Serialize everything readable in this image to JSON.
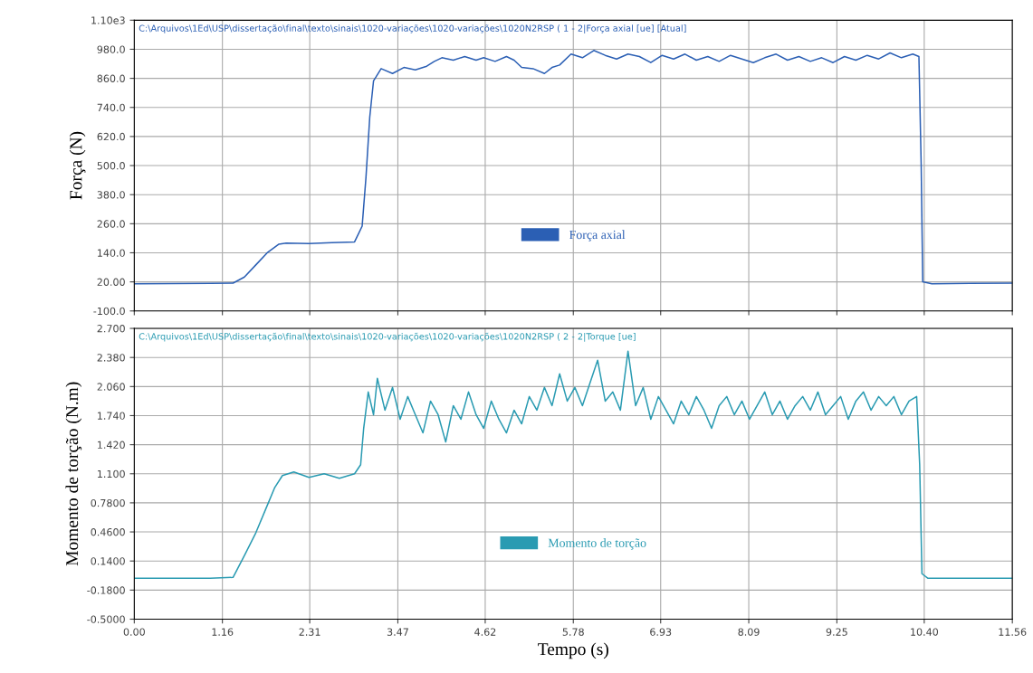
{
  "chart_data": [
    {
      "type": "line",
      "ylabel": "Força (N)",
      "xlim": [
        0,
        11.56
      ],
      "ylim": [
        -100,
        1100
      ],
      "xticks": [
        {
          "value": 0,
          "label": null
        },
        {
          "value": 1.16,
          "label": null
        },
        {
          "value": 2.31,
          "label": null
        },
        {
          "value": 3.47,
          "label": null
        },
        {
          "value": 4.62,
          "label": null
        },
        {
          "value": 5.78,
          "label": null
        },
        {
          "value": 6.93,
          "label": null
        },
        {
          "value": 8.09,
          "label": null
        },
        {
          "value": 9.25,
          "label": null
        },
        {
          "value": 10.4,
          "label": null
        },
        {
          "value": 11.56,
          "label": null
        }
      ],
      "yticks": [
        {
          "value": -100,
          "label": "-100.0"
        },
        {
          "value": 20,
          "label": "20.00"
        },
        {
          "value": 140,
          "label": "140.0"
        },
        {
          "value": 260,
          "label": "260.0"
        },
        {
          "value": 380,
          "label": "380.0"
        },
        {
          "value": 500,
          "label": "500.0"
        },
        {
          "value": 620,
          "label": "620.0"
        },
        {
          "value": 740,
          "label": "740.0"
        },
        {
          "value": 860,
          "label": "860.0"
        },
        {
          "value": 980,
          "label": "980.0"
        },
        {
          "value": 1100,
          "label": "1.10e3"
        }
      ],
      "tick_labels": "y",
      "grid": true,
      "legend": "bottom",
      "annotations": [
        "C:\\Arquivos\\1Ed\\USP\\dissertação\\final\\texto\\sinais\\1020-variações\\1020-variações\\1020N2RSP ( 1 - 2|Força axial [ue] [Atual]"
      ],
      "series": [
        {
          "name": "Força axial",
          "color": "#2b5fb4",
          "x": [
            0,
            1.0,
            1.3,
            1.45,
            1.6,
            1.75,
            1.9,
            2.0,
            2.3,
            2.6,
            2.9,
            3.0,
            3.05,
            3.1,
            3.15,
            3.25,
            3.4,
            3.55,
            3.7,
            3.85,
            3.95,
            4.05,
            4.2,
            4.35,
            4.5,
            4.6,
            4.75,
            4.9,
            5.0,
            5.1,
            5.25,
            5.4,
            5.5,
            5.6,
            5.75,
            5.9,
            6.05,
            6.2,
            6.35,
            6.5,
            6.65,
            6.8,
            6.95,
            7.1,
            7.25,
            7.4,
            7.55,
            7.7,
            7.85,
            8.0,
            8.15,
            8.3,
            8.45,
            8.6,
            8.75,
            8.9,
            9.05,
            9.2,
            9.35,
            9.5,
            9.65,
            9.8,
            9.95,
            10.1,
            10.25,
            10.33,
            10.36,
            10.38,
            10.5,
            11.0,
            11.56
          ],
          "values": [
            12,
            14,
            15,
            40,
            90,
            140,
            175,
            180,
            178,
            182,
            185,
            250,
            450,
            700,
            850,
            900,
            880,
            905,
            895,
            910,
            930,
            945,
            935,
            950,
            935,
            945,
            930,
            950,
            935,
            905,
            900,
            880,
            905,
            915,
            960,
            945,
            975,
            955,
            940,
            960,
            950,
            925,
            955,
            940,
            960,
            935,
            950,
            930,
            955,
            940,
            925,
            945,
            960,
            935,
            950,
            930,
            945,
            925,
            950,
            935,
            955,
            940,
            965,
            945,
            960,
            950,
            500,
            20,
            12,
            14,
            15
          ]
        }
      ]
    },
    {
      "type": "line",
      "xlabel": "Tempo (s)",
      "ylabel": "Momento de torção (N.m)",
      "xlim": [
        0,
        11.56
      ],
      "ylim": [
        -0.5,
        2.7
      ],
      "xticks": [
        {
          "value": 0,
          "label": "0.00"
        },
        1.16,
        2.31,
        3.47,
        4.62,
        5.78,
        6.93,
        8.09,
        9.25,
        {
          "value": 10.4,
          "label": "10.40"
        },
        11.56
      ],
      "yticks": [
        {
          "value": -0.5,
          "label": "-0.5000"
        },
        {
          "value": -0.18,
          "label": "-0.1800"
        },
        {
          "value": 0.14,
          "label": "0.1400"
        },
        {
          "value": 0.46,
          "label": "0.4600"
        },
        {
          "value": 0.78,
          "label": "0.7800"
        },
        {
          "value": 1.1,
          "label": "1.100"
        },
        {
          "value": 1.42,
          "label": "1.420"
        },
        {
          "value": 1.74,
          "label": "1.740"
        },
        {
          "value": 2.06,
          "label": "2.060"
        },
        {
          "value": 2.38,
          "label": "2.380"
        },
        {
          "value": 2.7,
          "label": "2.700"
        }
      ],
      "grid": true,
      "legend": "bottom",
      "annotations": [
        "C:\\Arquivos\\1Ed\\USP\\dissertação\\final\\texto\\sinais\\1020-variações\\1020-variações\\1020N2RSP ( 2 - 2|Torque [ue]"
      ],
      "series": [
        {
          "name": "Momento de torção",
          "color": "#2a9bb2",
          "x": [
            0,
            1.0,
            1.3,
            1.45,
            1.6,
            1.75,
            1.85,
            1.95,
            2.1,
            2.3,
            2.5,
            2.7,
            2.9,
            2.98,
            3.02,
            3.08,
            3.15,
            3.2,
            3.3,
            3.4,
            3.5,
            3.6,
            3.7,
            3.8,
            3.9,
            4.0,
            4.1,
            4.2,
            4.3,
            4.4,
            4.5,
            4.6,
            4.7,
            4.8,
            4.9,
            5.0,
            5.1,
            5.2,
            5.3,
            5.4,
            5.5,
            5.6,
            5.7,
            5.8,
            5.9,
            6.0,
            6.1,
            6.2,
            6.3,
            6.4,
            6.5,
            6.6,
            6.7,
            6.8,
            6.9,
            7.0,
            7.1,
            7.2,
            7.3,
            7.4,
            7.5,
            7.6,
            7.7,
            7.8,
            7.9,
            8.0,
            8.1,
            8.2,
            8.3,
            8.4,
            8.5,
            8.6,
            8.7,
            8.8,
            8.9,
            9.0,
            9.1,
            9.2,
            9.3,
            9.4,
            9.5,
            9.6,
            9.7,
            9.8,
            9.9,
            10.0,
            10.1,
            10.2,
            10.3,
            10.34,
            10.37,
            10.45,
            11.56
          ],
          "values": [
            -0.05,
            -0.05,
            -0.04,
            0.2,
            0.45,
            0.75,
            0.95,
            1.08,
            1.12,
            1.06,
            1.1,
            1.05,
            1.1,
            1.2,
            1.6,
            2.0,
            1.75,
            2.15,
            1.8,
            2.05,
            1.7,
            1.95,
            1.75,
            1.55,
            1.9,
            1.75,
            1.45,
            1.85,
            1.7,
            2.0,
            1.75,
            1.6,
            1.9,
            1.7,
            1.55,
            1.8,
            1.65,
            1.95,
            1.8,
            2.05,
            1.85,
            2.2,
            1.9,
            2.05,
            1.85,
            2.1,
            2.35,
            1.9,
            2.0,
            1.8,
            2.45,
            1.85,
            2.05,
            1.7,
            1.95,
            1.8,
            1.65,
            1.9,
            1.75,
            1.95,
            1.8,
            1.6,
            1.85,
            1.95,
            1.75,
            1.9,
            1.7,
            1.85,
            2.0,
            1.75,
            1.9,
            1.7,
            1.85,
            1.95,
            1.8,
            2.0,
            1.75,
            1.85,
            1.95,
            1.7,
            1.9,
            2.0,
            1.8,
            1.95,
            1.85,
            1.95,
            1.75,
            1.9,
            1.95,
            1.2,
            0.0,
            -0.05,
            -0.05
          ]
        }
      ]
    }
  ]
}
